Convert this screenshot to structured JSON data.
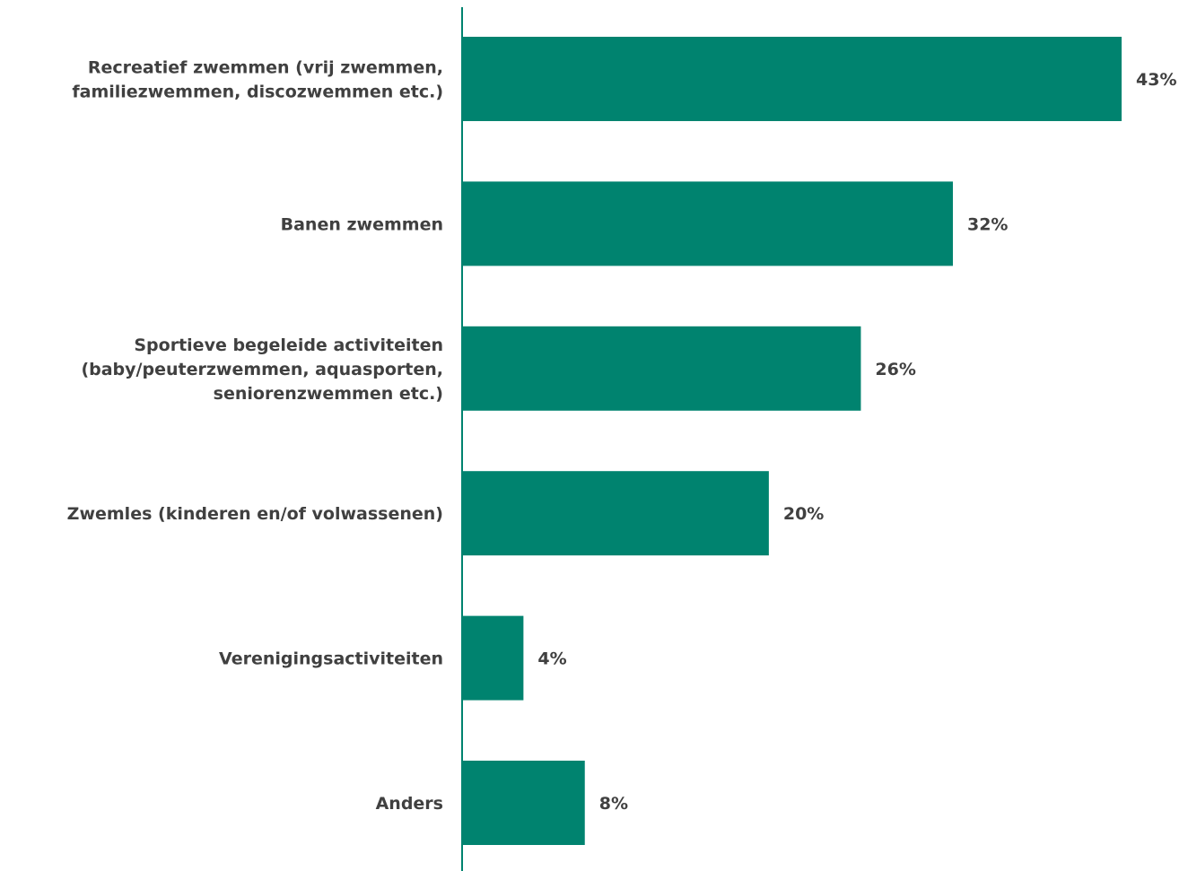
{
  "chart_data": {
    "type": "bar",
    "orientation": "horizontal",
    "categories": [
      [
        "Recreatief zwemmen (vrij zwemmen,",
        "familiezwemmen, discozwemmen etc.)"
      ],
      [
        "Banen zwemmen"
      ],
      [
        "Sportieve begeleide activiteiten",
        "(baby/peuterzwemmen, aquasporten,",
        "seniorenzwemmen etc.)"
      ],
      [
        "Zwemles (kinderen en/of volwassenen)"
      ],
      [
        "Verenigingsactiviteiten"
      ],
      [
        "Anders"
      ]
    ],
    "values": [
      43,
      32,
      26,
      20,
      4,
      8
    ],
    "value_labels": [
      "43%",
      "32%",
      "26%",
      "20%",
      "4%",
      "8%"
    ],
    "unit": "%",
    "xlim": [
      0,
      43
    ],
    "grid": false,
    "legend": "none",
    "colors": {
      "bar": "#00836F",
      "axis": "#00836F",
      "text": "#404040"
    }
  }
}
